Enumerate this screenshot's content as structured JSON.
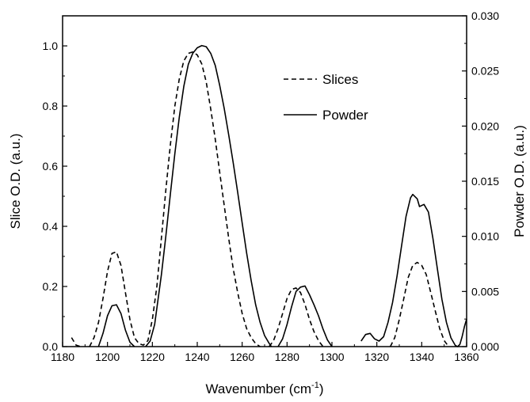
{
  "chart_data": {
    "type": "line",
    "xlabel": "Wavenumber (cm",
    "xlabel_sup": "-1",
    "xlabel_close": ")",
    "ylabel_left": "Slice O.D. (a.u.)",
    "ylabel_right": "Powder O.D. (a.u.)",
    "xlim": [
      1180,
      1360
    ],
    "ylim_left": [
      0,
      1.1
    ],
    "ylim_right": [
      0,
      0.03
    ],
    "x_ticks": [
      "1180",
      "1200",
      "1220",
      "1240",
      "1260",
      "1280",
      "1300",
      "1320",
      "1340",
      "1360"
    ],
    "y_left_ticks": [
      "0.0",
      "0.2",
      "0.4",
      "0.6",
      "0.8",
      "1.0"
    ],
    "y_right_ticks": [
      "0.000",
      "0.005",
      "0.010",
      "0.015",
      "0.020",
      "0.025",
      "0.030"
    ],
    "grid": false,
    "legend_position": "top-right",
    "colors": {
      "axis": "#000000",
      "line": "#000000",
      "background": "#ffffff"
    },
    "series": [
      {
        "name": "Slices",
        "axis": "left",
        "style": "dashed",
        "segments": [
          [
            [
              1184,
              0.03
            ],
            [
              1186,
              0.005
            ],
            [
              1188,
              0.0
            ]
          ],
          [
            [
              1192,
              0.0
            ],
            [
              1194,
              0.03
            ],
            [
              1196,
              0.08
            ],
            [
              1198,
              0.16
            ],
            [
              1200,
              0.25
            ],
            [
              1202,
              0.31
            ],
            [
              1204,
              0.315
            ],
            [
              1206,
              0.27
            ],
            [
              1208,
              0.18
            ],
            [
              1210,
              0.09
            ],
            [
              1212,
              0.03
            ],
            [
              1214,
              0.01
            ],
            [
              1216,
              0.005
            ],
            [
              1218,
              0.02
            ],
            [
              1220,
              0.09
            ],
            [
              1222,
              0.2
            ],
            [
              1224,
              0.36
            ],
            [
              1226,
              0.52
            ],
            [
              1228,
              0.67
            ],
            [
              1230,
              0.8
            ],
            [
              1232,
              0.89
            ],
            [
              1234,
              0.95
            ],
            [
              1236,
              0.975
            ],
            [
              1238,
              0.98
            ],
            [
              1240,
              0.97
            ],
            [
              1242,
              0.94
            ],
            [
              1244,
              0.88
            ],
            [
              1246,
              0.79
            ],
            [
              1248,
              0.69
            ],
            [
              1250,
              0.58
            ],
            [
              1252,
              0.47
            ],
            [
              1254,
              0.36
            ],
            [
              1256,
              0.26
            ],
            [
              1258,
              0.18
            ],
            [
              1260,
              0.11
            ],
            [
              1262,
              0.06
            ],
            [
              1264,
              0.03
            ],
            [
              1266,
              0.01
            ],
            [
              1268,
              0.0
            ]
          ],
          [
            [
              1272,
              0.0
            ],
            [
              1274,
              0.02
            ],
            [
              1276,
              0.06
            ],
            [
              1278,
              0.11
            ],
            [
              1280,
              0.16
            ],
            [
              1282,
              0.19
            ],
            [
              1284,
              0.195
            ],
            [
              1286,
              0.18
            ],
            [
              1288,
              0.14
            ],
            [
              1290,
              0.09
            ],
            [
              1292,
              0.05
            ],
            [
              1294,
              0.02
            ],
            [
              1296,
              0.0
            ]
          ],
          [
            [
              1326,
              0.0
            ],
            [
              1328,
              0.03
            ],
            [
              1330,
              0.09
            ],
            [
              1332,
              0.16
            ],
            [
              1334,
              0.23
            ],
            [
              1336,
              0.27
            ],
            [
              1338,
              0.28
            ],
            [
              1340,
              0.27
            ],
            [
              1342,
              0.24
            ],
            [
              1344,
              0.18
            ],
            [
              1346,
              0.12
            ],
            [
              1348,
              0.06
            ],
            [
              1350,
              0.02
            ],
            [
              1352,
              0.0
            ]
          ]
        ]
      },
      {
        "name": "Powder",
        "axis": "right",
        "style": "solid",
        "segments": [
          [
            [
              1196,
              0.0
            ],
            [
              1198,
              0.0012
            ],
            [
              1200,
              0.0028
            ],
            [
              1202,
              0.0037
            ],
            [
              1204,
              0.0038
            ],
            [
              1206,
              0.003
            ],
            [
              1208,
              0.0015
            ],
            [
              1210,
              0.0004
            ],
            [
              1212,
              0.0
            ]
          ],
          [
            [
              1217,
              0.0
            ],
            [
              1219,
              0.0005
            ],
            [
              1221,
              0.002
            ],
            [
              1224,
              0.0065
            ],
            [
              1226,
              0.01
            ],
            [
              1228,
              0.0138
            ],
            [
              1230,
              0.0175
            ],
            [
              1232,
              0.0208
            ],
            [
              1234,
              0.0236
            ],
            [
              1236,
              0.0256
            ],
            [
              1238,
              0.0266
            ],
            [
              1240,
              0.0271
            ],
            [
              1242,
              0.0273
            ],
            [
              1244,
              0.0272
            ],
            [
              1246,
              0.0266
            ],
            [
              1248,
              0.0255
            ],
            [
              1250,
              0.0237
            ],
            [
              1252,
              0.0216
            ],
            [
              1254,
              0.0192
            ],
            [
              1256,
              0.0167
            ],
            [
              1258,
              0.014
            ],
            [
              1260,
              0.0112
            ],
            [
              1262,
              0.0085
            ],
            [
              1264,
              0.006
            ],
            [
              1266,
              0.0038
            ],
            [
              1268,
              0.0022
            ],
            [
              1270,
              0.001
            ],
            [
              1272,
              0.0003
            ],
            [
              1273,
              0.0
            ]
          ],
          [
            [
              1276,
              0.0
            ],
            [
              1278,
              0.0007
            ],
            [
              1280,
              0.002
            ],
            [
              1282,
              0.0036
            ],
            [
              1284,
              0.005
            ],
            [
              1286,
              0.0054
            ],
            [
              1288,
              0.0055
            ],
            [
              1290,
              0.0047
            ],
            [
              1292,
              0.0038
            ],
            [
              1294,
              0.0028
            ],
            [
              1296,
              0.0016
            ],
            [
              1298,
              0.0006
            ],
            [
              1300,
              0.0
            ]
          ],
          [
            [
              1313,
              0.0005
            ],
            [
              1315,
              0.0011
            ],
            [
              1317,
              0.0012
            ],
            [
              1319,
              0.0007
            ],
            [
              1321,
              0.0005
            ],
            [
              1323,
              0.0009
            ],
            [
              1325,
              0.0022
            ],
            [
              1327,
              0.004
            ],
            [
              1329,
              0.0064
            ],
            [
              1331,
              0.0091
            ],
            [
              1333,
              0.0118
            ],
            [
              1335,
              0.0135
            ],
            [
              1336,
              0.0138
            ],
            [
              1338,
              0.0134
            ],
            [
              1339,
              0.0127
            ],
            [
              1341,
              0.0129
            ],
            [
              1343,
              0.0122
            ],
            [
              1345,
              0.0098
            ],
            [
              1347,
              0.007
            ],
            [
              1349,
              0.0043
            ],
            [
              1351,
              0.0022
            ],
            [
              1353,
              0.0008
            ],
            [
              1355,
              0.0001
            ],
            [
              1356,
              0.0
            ],
            [
              1357,
              0.0002
            ],
            [
              1358,
              0.0009
            ],
            [
              1359,
              0.0018
            ],
            [
              1360,
              0.0025
            ]
          ]
        ]
      }
    ]
  }
}
